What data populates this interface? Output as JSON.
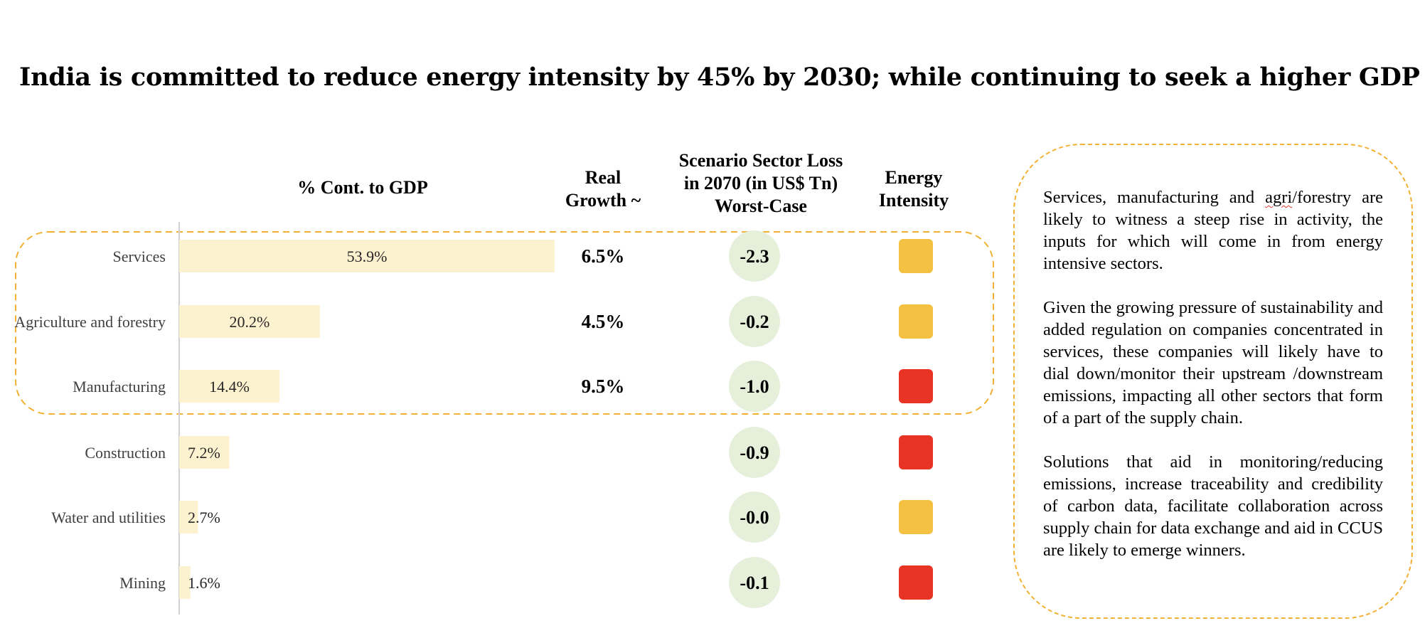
{
  "title": "India is committed to reduce energy intensity by 45% by 2030;  while continuing to seek a higher GDP",
  "headers": {
    "gdp": "% Cont. to GDP",
    "growth_l1": "Real",
    "growth_l2": "Growth ~",
    "loss_l1": "Scenario Sector Loss",
    "loss_l2": "in 2070 (in US$ Tn)",
    "loss_l3": "Worst-Case",
    "intensity_l1": "Energy",
    "intensity_l2": "Intensity"
  },
  "colors": {
    "bar": "#fdf2cf",
    "axis": "#d0d0d0",
    "loss_circle": "#e5efda",
    "highlight_border": "#f2b134",
    "intensity_medium": "#f4c143",
    "intensity_high": "#e83424"
  },
  "chart_data": {
    "type": "bar",
    "orientation": "horizontal",
    "categories": [
      "Services",
      "Agriculture and forestry",
      "Manufacturing",
      "Construction",
      "Water and utilities",
      "Mining"
    ],
    "series": [
      {
        "name": "% Cont. to GDP",
        "values": [
          53.9,
          20.2,
          14.4,
          7.2,
          2.7,
          1.6
        ],
        "labels": [
          "53.9%",
          "20.2%",
          "14.4%",
          "7.2%",
          "2.7%",
          "1.6%"
        ]
      }
    ],
    "xlim": [
      0,
      53.9
    ],
    "real_growth": [
      "6.5%",
      "4.5%",
      "9.5%",
      null,
      null,
      null
    ],
    "sector_loss": [
      "-2.3",
      "-0.2",
      "-1.0",
      "-0.9",
      "-0.0",
      "-0.1"
    ],
    "energy_intensity": [
      "medium",
      "medium",
      "high",
      "high",
      "medium",
      "high"
    ],
    "highlighted_categories": [
      "Services",
      "Agriculture and forestry",
      "Manufacturing"
    ]
  },
  "notes": {
    "p1_pre": "Services, manufacturing and ",
    "p1_mark": "agri",
    "p1_post": "/forestry are likely to witness a steep rise in activity, the inputs for which will come in from energy intensive sectors.",
    "p2": "Given the growing pressure of sustainability and added regulation on companies concentrated in services, these companies will likely have to dial down/monitor their upstream /downstream emissions, impacting all other sectors that form of a part of the supply chain.",
    "p3": "Solutions that aid in monitoring/reducing emissions, increase traceability and credibility of carbon data, facilitate collaboration across supply chain for data exchange and aid in CCUS are likely to emerge winners."
  }
}
